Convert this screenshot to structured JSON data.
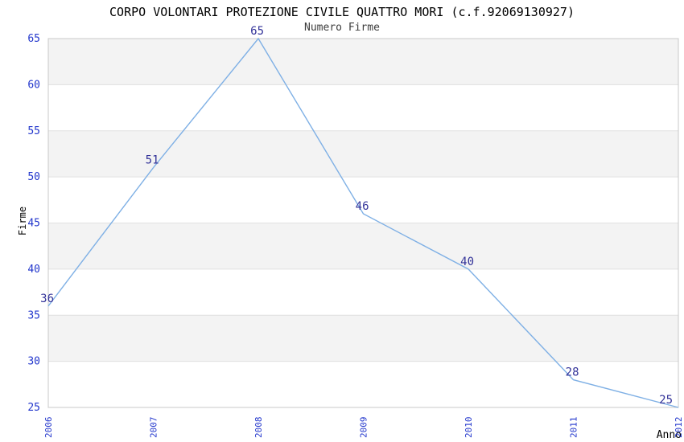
{
  "chart_data": {
    "type": "line",
    "title": "CORPO VOLONTARI PROTEZIONE CIVILE QUATTRO MORI (c.f.92069130927)",
    "subtitle": "Numero Firme",
    "xlabel": "Anno",
    "ylabel": "Firme",
    "categories": [
      "2006",
      "2007",
      "2008",
      "2009",
      "2010",
      "2011",
      "2012"
    ],
    "values": [
      36,
      51,
      65,
      46,
      40,
      28,
      25
    ],
    "ylim": [
      25,
      65
    ],
    "y_ticks": [
      25,
      30,
      35,
      40,
      45,
      50,
      55,
      60,
      65
    ],
    "grid": "horizontal",
    "shaded_bands": [
      [
        60,
        65
      ],
      [
        50,
        55
      ],
      [
        40,
        45
      ],
      [
        30,
        35
      ]
    ],
    "legend_position": "none",
    "colors": {
      "line": "#7fb0e5",
      "data_label": "#333399",
      "tick_label": "#2236cc",
      "title": "#000000",
      "subtitle": "#3c3c3c",
      "axis_label": "#000000",
      "band": "#f3f3f3",
      "gridline": "#e0e0e0",
      "frame": "#c8c8c8",
      "background": "#ffffff"
    }
  }
}
